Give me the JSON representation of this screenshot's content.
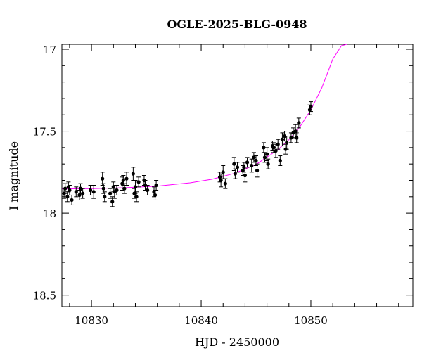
{
  "chart_data": {
    "type": "scatter",
    "title": "OGLE-2025-BLG-0948",
    "xlabel": "HJD - 2450000",
    "ylabel": "I magnitude",
    "xlim": [
      10827.3,
      10859.3
    ],
    "ylim": [
      18.57,
      16.97
    ],
    "y_inverted": true,
    "grid": false,
    "x_ticks": [
      10830,
      10840,
      10850
    ],
    "x_tick_labels": [
      "10830",
      "10840",
      "10850"
    ],
    "y_ticks": [
      17.0,
      17.5,
      18.0,
      18.5
    ],
    "y_tick_labels": [
      "17",
      "17.5",
      "18",
      "18.5"
    ],
    "colors": {
      "points": "#000000",
      "model": "#ff00ff"
    },
    "series": [
      {
        "kind": "points",
        "x": [
          10827.5,
          10827.6,
          10827.8,
          10827.9,
          10828.0,
          10828.2,
          10828.6,
          10828.9,
          10829.0,
          10829.2,
          10829.9,
          10830.2,
          10831.0,
          10831.1,
          10831.2,
          10831.7,
          10831.9,
          10832.0,
          10832.1,
          10832.3,
          10832.8,
          10832.9,
          10833.0,
          10833.2,
          10833.8,
          10833.9,
          10834.0,
          10834.1,
          10834.3,
          10834.8,
          10834.9,
          10835.1,
          10835.7,
          10835.9,
          10835.8,
          10841.7,
          10841.8,
          10842.0,
          10842.2,
          10843.0,
          10843.1,
          10843.3,
          10843.8,
          10843.9,
          10844.0,
          10844.2,
          10844.6,
          10844.8,
          10845.0,
          10845.1,
          10845.7,
          10845.8,
          10846.0,
          10846.1,
          10846.5,
          10846.6,
          10846.8,
          10847.0,
          10847.2,
          10847.4,
          10847.6,
          10847.7,
          10847.8,
          10848.2,
          10848.4,
          10848.6,
          10848.7,
          10848.9,
          10849.9,
          10850.0
        ],
        "y": [
          17.88,
          17.85,
          17.9,
          17.84,
          17.86,
          17.92,
          17.87,
          17.89,
          17.85,
          17.88,
          17.86,
          17.87,
          17.79,
          17.85,
          17.9,
          17.88,
          17.93,
          17.84,
          17.87,
          17.86,
          17.82,
          17.8,
          17.85,
          17.79,
          17.76,
          17.88,
          17.84,
          17.9,
          17.81,
          17.8,
          17.83,
          17.86,
          17.87,
          17.83,
          17.89,
          17.78,
          17.8,
          17.75,
          17.82,
          17.7,
          17.76,
          17.72,
          17.74,
          17.72,
          17.77,
          17.69,
          17.71,
          17.66,
          17.68,
          17.74,
          17.6,
          17.66,
          17.64,
          17.7,
          17.59,
          17.6,
          17.62,
          17.58,
          17.68,
          17.55,
          17.53,
          17.61,
          17.57,
          17.54,
          17.51,
          17.5,
          17.54,
          17.45,
          17.37,
          17.35
        ],
        "yerr": [
          0.03,
          0.03,
          0.03,
          0.03,
          0.03,
          0.03,
          0.03,
          0.03,
          0.03,
          0.03,
          0.03,
          0.04,
          0.04,
          0.03,
          0.03,
          0.03,
          0.03,
          0.03,
          0.04,
          0.03,
          0.04,
          0.03,
          0.03,
          0.04,
          0.04,
          0.03,
          0.04,
          0.03,
          0.03,
          0.03,
          0.03,
          0.03,
          0.03,
          0.03,
          0.03,
          0.03,
          0.04,
          0.04,
          0.03,
          0.04,
          0.03,
          0.03,
          0.03,
          0.03,
          0.04,
          0.03,
          0.04,
          0.03,
          0.03,
          0.04,
          0.03,
          0.03,
          0.04,
          0.03,
          0.03,
          0.03,
          0.04,
          0.03,
          0.03,
          0.04,
          0.03,
          0.03,
          0.04,
          0.03,
          0.03,
          0.04,
          0.03,
          0.03,
          0.03,
          0.03
        ]
      },
      {
        "kind": "model",
        "x": [
          10827.3,
          10830,
          10833,
          10836,
          10839,
          10841,
          10843,
          10845,
          10847,
          10848,
          10849,
          10850,
          10851,
          10852,
          10852.8,
          10853.3
        ],
        "y": [
          17.852,
          17.85,
          17.845,
          17.835,
          17.815,
          17.793,
          17.758,
          17.703,
          17.613,
          17.552,
          17.473,
          17.37,
          17.235,
          17.06,
          16.978,
          16.97
        ]
      }
    ]
  }
}
